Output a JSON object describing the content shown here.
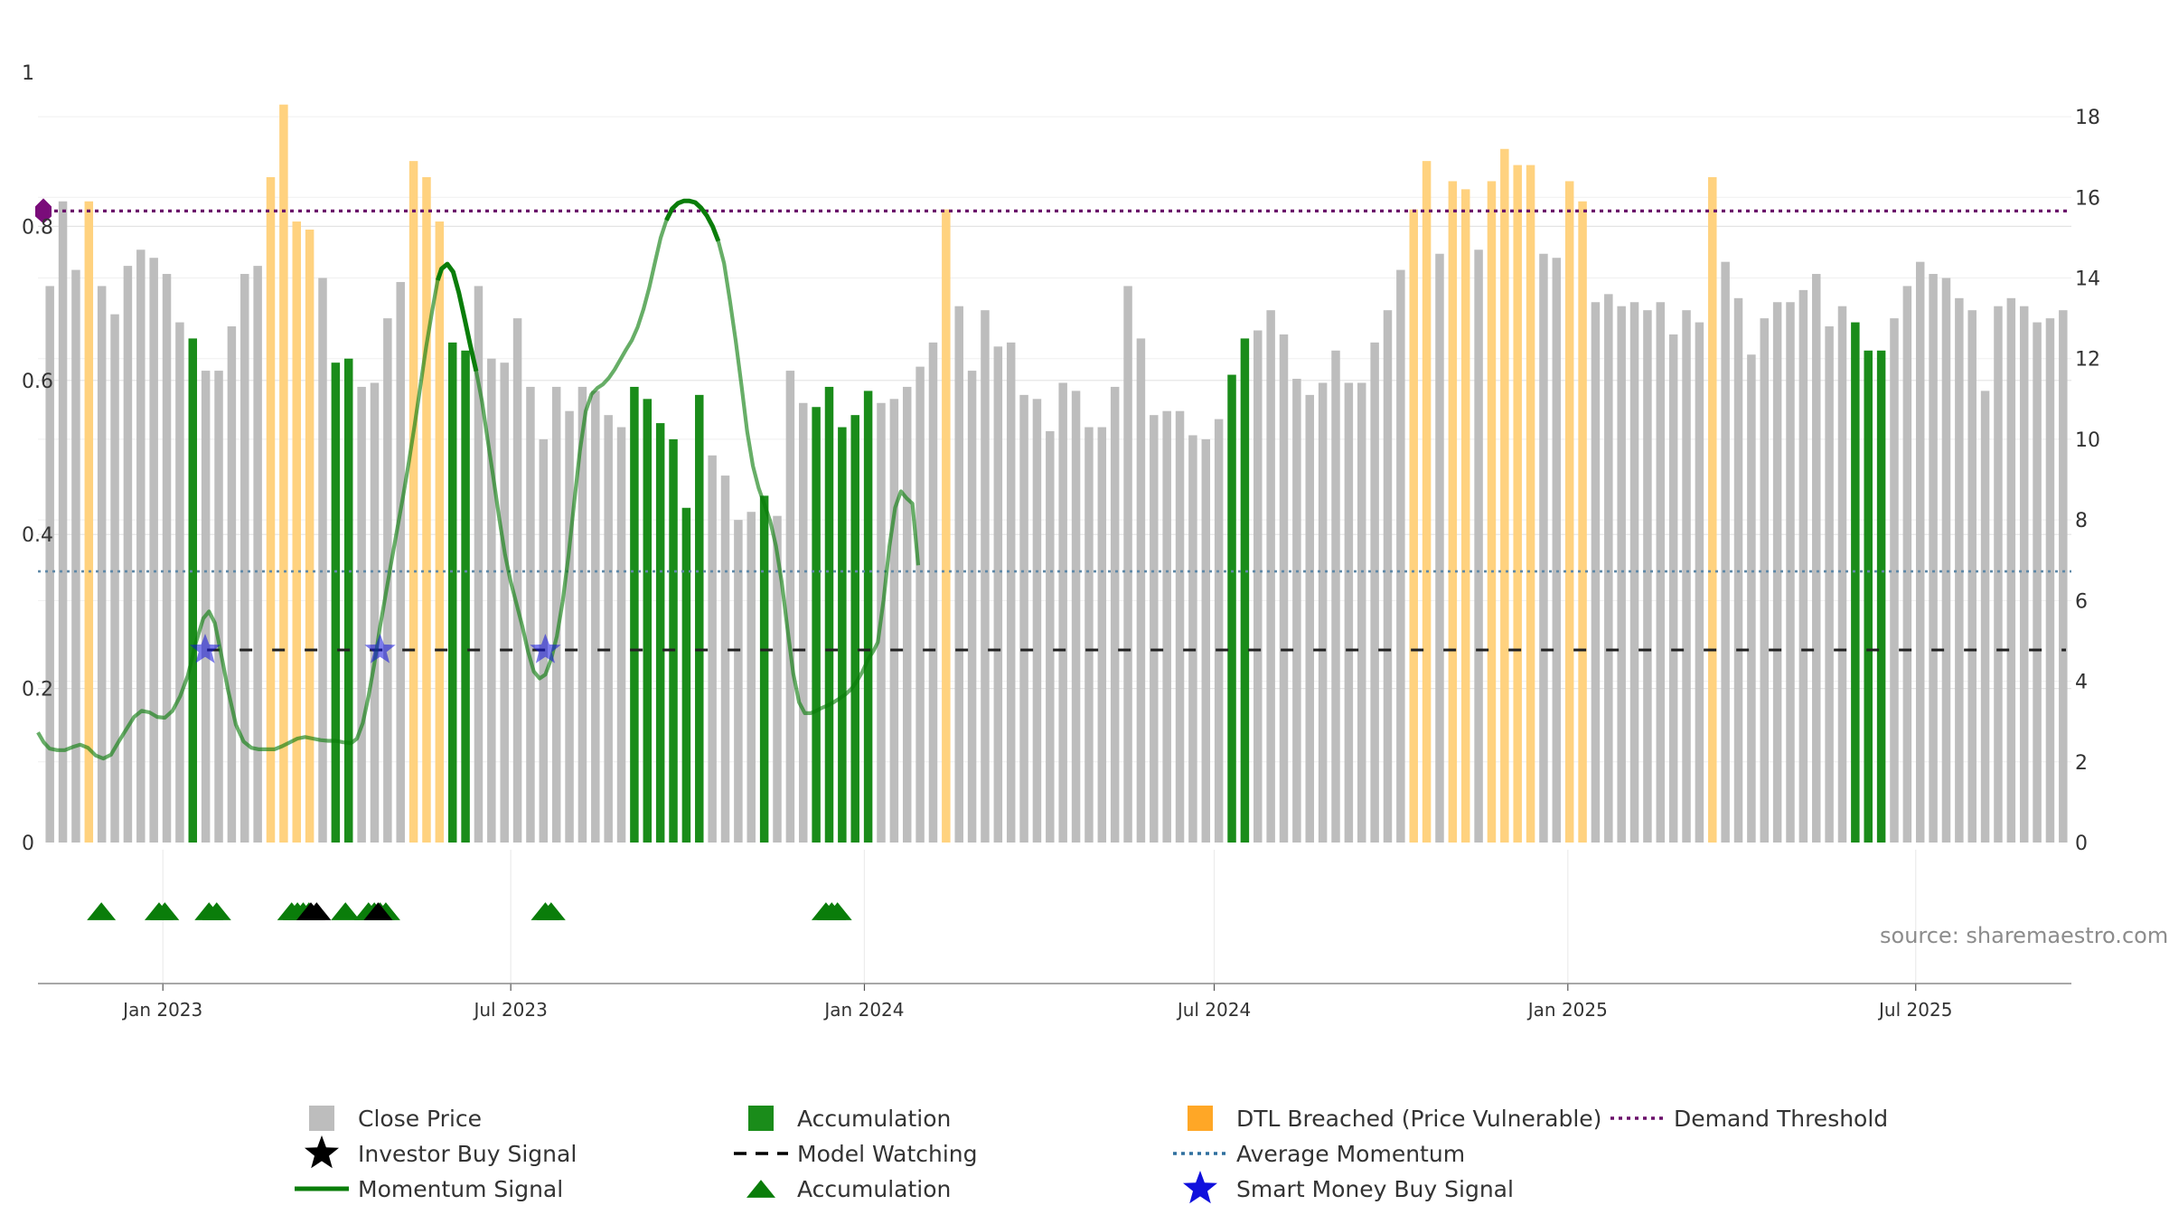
{
  "chart_data": {
    "type": "bar",
    "source_note": "source: sharemaestro.com",
    "x_ticks": [
      "Jan 2023",
      "Jul 2023",
      "Jan 2024",
      "Jul 2024",
      "Jan 2025",
      "Jul 2025"
    ],
    "x_range": [
      "2022-10-28",
      "2025-09-20"
    ],
    "left_axis": {
      "ticks": [
        "0",
        "0.2",
        "0.4",
        "0.6",
        "0.8",
        "1"
      ],
      "ylim": [
        0,
        1
      ]
    },
    "right_axis": {
      "ticks": [
        "0",
        "2",
        "4",
        "6",
        "8",
        "10",
        "12",
        "14",
        "16",
        "18"
      ],
      "ylim": [
        0,
        19.1
      ]
    },
    "price_categories": [
      "Close Price",
      "Accumulation",
      "DTL Breached (Price Vulnerable)"
    ],
    "price_values": [
      [
        13.8,
        0
      ],
      [
        15.9,
        0
      ],
      [
        14.2,
        0
      ],
      [
        15.9,
        2
      ],
      [
        13.8,
        0
      ],
      [
        13.1,
        0
      ],
      [
        14.3,
        0
      ],
      [
        14.7,
        0
      ],
      [
        14.5,
        0
      ],
      [
        14.1,
        0
      ],
      [
        12.9,
        0
      ],
      [
        12.5,
        1
      ],
      [
        11.7,
        0
      ],
      [
        11.7,
        0
      ],
      [
        12.8,
        0
      ],
      [
        14.1,
        0
      ],
      [
        14.3,
        0
      ],
      [
        16.5,
        2
      ],
      [
        18.3,
        2
      ],
      [
        15.4,
        2
      ],
      [
        15.2,
        2
      ],
      [
        14.0,
        0
      ],
      [
        11.9,
        1
      ],
      [
        12.0,
        1
      ],
      [
        11.3,
        0
      ],
      [
        11.4,
        0
      ],
      [
        13.0,
        0
      ],
      [
        13.9,
        0
      ],
      [
        16.9,
        2
      ],
      [
        16.5,
        2
      ],
      [
        15.4,
        2
      ],
      [
        12.4,
        1
      ],
      [
        12.2,
        1
      ],
      [
        13.8,
        0
      ],
      [
        12.0,
        0
      ],
      [
        11.9,
        0
      ],
      [
        13.0,
        0
      ],
      [
        11.3,
        0
      ],
      [
        10.0,
        0
      ],
      [
        11.3,
        0
      ],
      [
        10.7,
        0
      ],
      [
        11.3,
        0
      ],
      [
        11.2,
        0
      ],
      [
        10.6,
        0
      ],
      [
        10.3,
        0
      ],
      [
        11.3,
        1
      ],
      [
        11.0,
        1
      ],
      [
        10.4,
        1
      ],
      [
        10.0,
        1
      ],
      [
        8.3,
        1
      ],
      [
        11.1,
        1
      ],
      [
        9.6,
        0
      ],
      [
        9.1,
        0
      ],
      [
        8.0,
        0
      ],
      [
        8.2,
        0
      ],
      [
        8.6,
        1
      ],
      [
        8.1,
        0
      ],
      [
        11.7,
        0
      ],
      [
        10.9,
        0
      ],
      [
        10.8,
        1
      ],
      [
        11.3,
        1
      ],
      [
        10.3,
        1
      ],
      [
        10.6,
        1
      ],
      [
        11.2,
        1
      ],
      [
        10.9,
        0
      ],
      [
        11.0,
        0
      ],
      [
        11.3,
        0
      ],
      [
        11.8,
        0
      ],
      [
        12.4,
        0
      ],
      [
        15.7,
        2
      ],
      [
        13.3,
        0
      ],
      [
        11.7,
        0
      ],
      [
        13.2,
        0
      ],
      [
        12.3,
        0
      ],
      [
        12.4,
        0
      ],
      [
        11.1,
        0
      ],
      [
        11.0,
        0
      ],
      [
        10.2,
        0
      ],
      [
        11.4,
        0
      ],
      [
        11.2,
        0
      ],
      [
        10.3,
        0
      ],
      [
        10.3,
        0
      ],
      [
        11.3,
        0
      ],
      [
        13.8,
        0
      ],
      [
        12.5,
        0
      ],
      [
        10.6,
        0
      ],
      [
        10.7,
        0
      ],
      [
        10.7,
        0
      ],
      [
        10.1,
        0
      ],
      [
        10.0,
        0
      ],
      [
        10.5,
        0
      ],
      [
        11.6,
        1
      ],
      [
        12.5,
        1
      ],
      [
        12.7,
        0
      ],
      [
        13.2,
        0
      ],
      [
        12.6,
        0
      ],
      [
        11.5,
        0
      ],
      [
        11.1,
        0
      ],
      [
        11.4,
        0
      ],
      [
        12.2,
        0
      ],
      [
        11.4,
        0
      ],
      [
        11.4,
        0
      ],
      [
        12.4,
        0
      ],
      [
        13.2,
        0
      ],
      [
        14.2,
        0
      ],
      [
        15.7,
        2
      ],
      [
        16.9,
        2
      ],
      [
        14.6,
        0
      ],
      [
        16.4,
        2
      ],
      [
        16.2,
        2
      ],
      [
        14.7,
        0
      ],
      [
        16.4,
        2
      ],
      [
        17.2,
        2
      ],
      [
        16.8,
        2
      ],
      [
        16.8,
        2
      ],
      [
        14.6,
        0
      ],
      [
        14.5,
        0
      ],
      [
        16.4,
        2
      ],
      [
        15.9,
        2
      ],
      [
        13.4,
        0
      ],
      [
        13.6,
        0
      ],
      [
        13.3,
        0
      ],
      [
        13.4,
        0
      ],
      [
        13.2,
        0
      ],
      [
        13.4,
        0
      ],
      [
        12.6,
        0
      ],
      [
        13.2,
        0
      ],
      [
        12.9,
        0
      ],
      [
        16.5,
        2
      ],
      [
        14.4,
        0
      ],
      [
        13.5,
        0
      ],
      [
        12.1,
        0
      ],
      [
        13.0,
        0
      ],
      [
        13.4,
        0
      ],
      [
        13.4,
        0
      ],
      [
        13.7,
        0
      ],
      [
        14.1,
        0
      ],
      [
        12.8,
        0
      ],
      [
        13.3,
        0
      ],
      [
        12.9,
        1
      ],
      [
        12.2,
        1
      ],
      [
        12.2,
        1
      ],
      [
        13.0,
        0
      ],
      [
        13.8,
        0
      ],
      [
        14.4,
        0
      ],
      [
        14.1,
        0
      ],
      [
        14.0,
        0
      ],
      [
        13.5,
        0
      ],
      [
        13.2,
        0
      ],
      [
        11.2,
        0
      ],
      [
        13.3,
        0
      ],
      [
        13.5,
        0
      ],
      [
        13.3,
        0
      ],
      [
        12.9,
        0
      ],
      [
        13.0,
        0
      ],
      [
        13.2,
        0
      ]
    ],
    "momentum": [
      [
        0,
        0.143
      ],
      [
        3,
        0.13
      ],
      [
        6,
        0.122
      ],
      [
        10,
        0.12
      ],
      [
        14,
        0.12
      ],
      [
        18,
        0.124
      ],
      [
        22,
        0.127
      ],
      [
        26,
        0.123
      ],
      [
        30,
        0.113
      ],
      [
        34,
        0.109
      ],
      [
        38,
        0.114
      ],
      [
        42,
        0.131
      ],
      [
        46,
        0.147
      ],
      [
        50,
        0.163
      ],
      [
        54,
        0.171
      ],
      [
        58,
        0.169
      ],
      [
        62,
        0.163
      ],
      [
        66,
        0.162
      ],
      [
        70,
        0.171
      ],
      [
        74,
        0.19
      ],
      [
        78,
        0.217
      ],
      [
        82,
        0.258
      ],
      [
        86,
        0.291
      ],
      [
        89,
        0.3
      ],
      [
        92,
        0.285
      ],
      [
        95,
        0.249
      ],
      [
        99,
        0.197
      ],
      [
        103,
        0.153
      ],
      [
        107,
        0.131
      ],
      [
        111,
        0.123
      ],
      [
        115,
        0.121
      ],
      [
        119,
        0.121
      ],
      [
        123,
        0.121
      ],
      [
        127,
        0.125
      ],
      [
        131,
        0.13
      ],
      [
        135,
        0.135
      ],
      [
        139,
        0.137
      ],
      [
        143,
        0.135
      ],
      [
        147,
        0.133
      ],
      [
        151,
        0.132
      ],
      [
        155,
        0.132
      ],
      [
        159,
        0.13
      ],
      [
        163,
        0.129
      ],
      [
        166,
        0.135
      ],
      [
        169,
        0.155
      ],
      [
        172,
        0.19
      ],
      [
        175,
        0.232
      ],
      [
        178,
        0.28
      ],
      [
        181,
        0.323
      ],
      [
        184,
        0.366
      ],
      [
        187,
        0.408
      ],
      [
        190,
        0.45
      ],
      [
        193,
        0.494
      ],
      [
        196,
        0.542
      ],
      [
        199,
        0.593
      ],
      [
        202,
        0.644
      ],
      [
        205,
        0.689
      ],
      [
        208,
        0.73
      ],
      [
        210,
        0.745
      ],
      [
        213,
        0.751
      ],
      [
        216,
        0.741
      ],
      [
        219,
        0.714
      ],
      [
        222,
        0.68
      ],
      [
        225,
        0.645
      ],
      [
        228,
        0.612
      ],
      [
        231,
        0.573
      ],
      [
        234,
        0.523
      ],
      [
        237,
        0.473
      ],
      [
        240,
        0.421
      ],
      [
        243,
        0.374
      ],
      [
        246,
        0.338
      ],
      [
        249,
        0.31
      ],
      [
        252,
        0.281
      ],
      [
        255,
        0.248
      ],
      [
        258,
        0.222
      ],
      [
        261,
        0.213
      ],
      [
        264,
        0.218
      ],
      [
        267,
        0.238
      ],
      [
        270,
        0.268
      ],
      [
        273,
        0.313
      ],
      [
        276,
        0.372
      ],
      [
        279,
        0.441
      ],
      [
        282,
        0.509
      ],
      [
        285,
        0.56
      ],
      [
        288,
        0.582
      ],
      [
        291,
        0.59
      ],
      [
        294,
        0.595
      ],
      [
        297,
        0.603
      ],
      [
        300,
        0.614
      ],
      [
        303,
        0.627
      ],
      [
        306,
        0.64
      ],
      [
        309,
        0.652
      ],
      [
        312,
        0.669
      ],
      [
        315,
        0.692
      ],
      [
        318,
        0.72
      ],
      [
        321,
        0.753
      ],
      [
        324,
        0.785
      ],
      [
        327,
        0.808
      ],
      [
        330,
        0.823
      ],
      [
        333,
        0.83
      ],
      [
        336,
        0.833
      ],
      [
        339,
        0.833
      ],
      [
        342,
        0.831
      ],
      [
        345,
        0.824
      ],
      [
        348,
        0.814
      ],
      [
        351,
        0.8
      ],
      [
        354,
        0.781
      ],
      [
        357,
        0.752
      ],
      [
        360,
        0.704
      ],
      [
        363,
        0.652
      ],
      [
        366,
        0.594
      ],
      [
        369,
        0.534
      ],
      [
        372,
        0.489
      ],
      [
        375,
        0.46
      ],
      [
        378,
        0.439
      ],
      [
        381,
        0.417
      ],
      [
        384,
        0.385
      ],
      [
        387,
        0.338
      ],
      [
        390,
        0.277
      ],
      [
        393,
        0.219
      ],
      [
        396,
        0.182
      ],
      [
        399,
        0.168
      ],
      [
        402,
        0.168
      ],
      [
        405,
        0.171
      ],
      [
        408,
        0.175
      ],
      [
        411,
        0.178
      ],
      [
        414,
        0.182
      ],
      [
        417,
        0.187
      ],
      [
        420,
        0.192
      ],
      [
        423,
        0.199
      ],
      [
        426,
        0.209
      ],
      [
        429,
        0.222
      ],
      [
        432,
        0.238
      ],
      [
        435,
        0.25
      ],
      [
        437,
        0.26
      ],
      [
        440,
        0.315
      ],
      [
        443,
        0.384
      ],
      [
        446,
        0.435
      ],
      [
        449,
        0.456
      ],
      [
        452,
        0.447
      ],
      [
        455,
        0.44
      ],
      [
        458,
        0.36
      ]
    ],
    "momentum_bold_ranges": [
      [
        208,
        228
      ],
      [
        326,
        354
      ]
    ],
    "average_momentum": 0.352,
    "demand_threshold": 0.82,
    "model_watching_level": 0.25,
    "model_watching_start_day": 88,
    "smart_money_buy_days": [
      87,
      178,
      264
    ],
    "demand_marker_day": 0,
    "investor_buy_days": [
      142,
      145,
      177
    ],
    "accumulation_marker_days": [
      33,
      63,
      66,
      89,
      93,
      132,
      135,
      138,
      141,
      160,
      172,
      175,
      178,
      181,
      264,
      267,
      410,
      413,
      416
    ],
    "legend": [
      {
        "label": "Close Price",
        "symbol": "square",
        "color": "#bdbdbd"
      },
      {
        "label": "Investor Buy Signal",
        "symbol": "star",
        "color": "#000000"
      },
      {
        "label": "Momentum Signal",
        "symbol": "line",
        "color": "#0a7d0a"
      },
      {
        "label": "Accumulation",
        "symbol": "square",
        "color": "#1a8c1a"
      },
      {
        "label": "Model Watching",
        "symbol": "dash",
        "color": "#000000"
      },
      {
        "label": "Accumulation",
        "symbol": "triangle",
        "color": "#0a7d0a"
      },
      {
        "label": "DTL Breached (Price Vulnerable)",
        "symbol": "square",
        "color": "#ffa726"
      },
      {
        "label": "Average Momentum",
        "symbol": "dotted",
        "color": "#2e6f9e"
      },
      {
        "label": "Smart Money Buy Signal",
        "symbol": "star",
        "color": "#1010dd"
      },
      {
        "label": "Demand Threshold",
        "symbol": "dotted",
        "color": "#6a0f6a"
      }
    ],
    "colors": {
      "close": "#bdbdbd",
      "accumulation": "#1a8c1a",
      "dtl": "#ffd27f",
      "momentum": "#0a7d0a",
      "average": "#5f89a8",
      "threshold": "#6a0f6a",
      "smart_money": "#1010dd",
      "investor": "#000000"
    }
  }
}
